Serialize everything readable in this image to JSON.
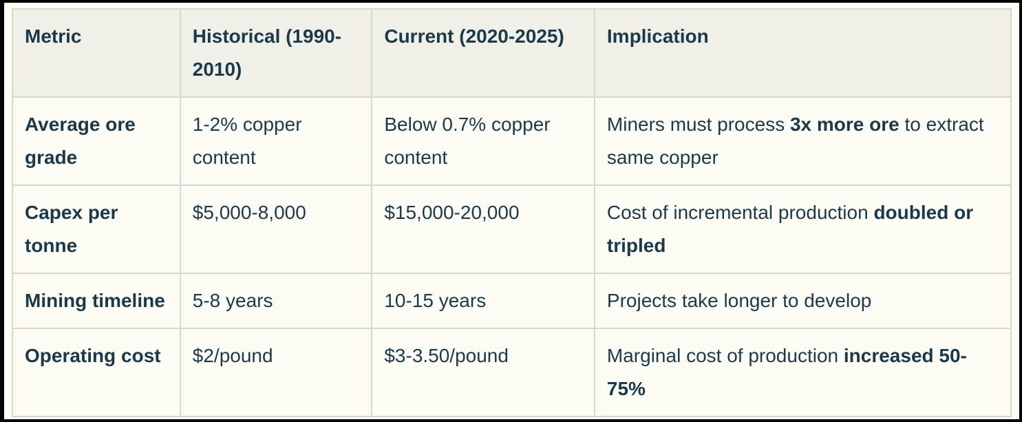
{
  "colors": {
    "frame": "#000000",
    "page_background": "#fcfcf4",
    "header_background": "#f0f0e9",
    "grid_border": "#d5d7d1",
    "text": "#1a3a4a"
  },
  "table": {
    "columns": [
      "Metric",
      "Historical (1990-2010)",
      "Current (2020-2025)",
      "Implication"
    ],
    "rows": [
      {
        "cells": [
          [
            {
              "text": "Average ore grade",
              "bold": true
            }
          ],
          [
            {
              "text": "1-2% copper content",
              "bold": false
            }
          ],
          [
            {
              "text": "Below 0.7% copper content",
              "bold": false
            }
          ],
          [
            {
              "text": "Miners must process ",
              "bold": false
            },
            {
              "text": "3x more ore",
              "bold": true
            },
            {
              "text": " to extract same copper",
              "bold": false
            }
          ]
        ]
      },
      {
        "cells": [
          [
            {
              "text": "Capex per tonne",
              "bold": true
            }
          ],
          [
            {
              "text": "$5,000-8,000",
              "bold": false
            }
          ],
          [
            {
              "text": "$15,000-20,000",
              "bold": false
            }
          ],
          [
            {
              "text": "Cost of incremental production ",
              "bold": false
            },
            {
              "text": "doubled or tripled",
              "bold": true
            }
          ]
        ]
      },
      {
        "cells": [
          [
            {
              "text": "Mining timeline",
              "bold": true
            }
          ],
          [
            {
              "text": "5-8 years",
              "bold": false
            }
          ],
          [
            {
              "text": "10-15 years",
              "bold": false
            }
          ],
          [
            {
              "text": "Projects take longer to develop",
              "bold": false
            }
          ]
        ]
      },
      {
        "cells": [
          [
            {
              "text": "Operating cost",
              "bold": true
            }
          ],
          [
            {
              "text": "$2/pound",
              "bold": false
            }
          ],
          [
            {
              "text": "$3-3.50/pound",
              "bold": false
            }
          ],
          [
            {
              "text": "Marginal cost of production ",
              "bold": false
            },
            {
              "text": "increased 50-75%",
              "bold": true
            }
          ]
        ]
      }
    ]
  }
}
